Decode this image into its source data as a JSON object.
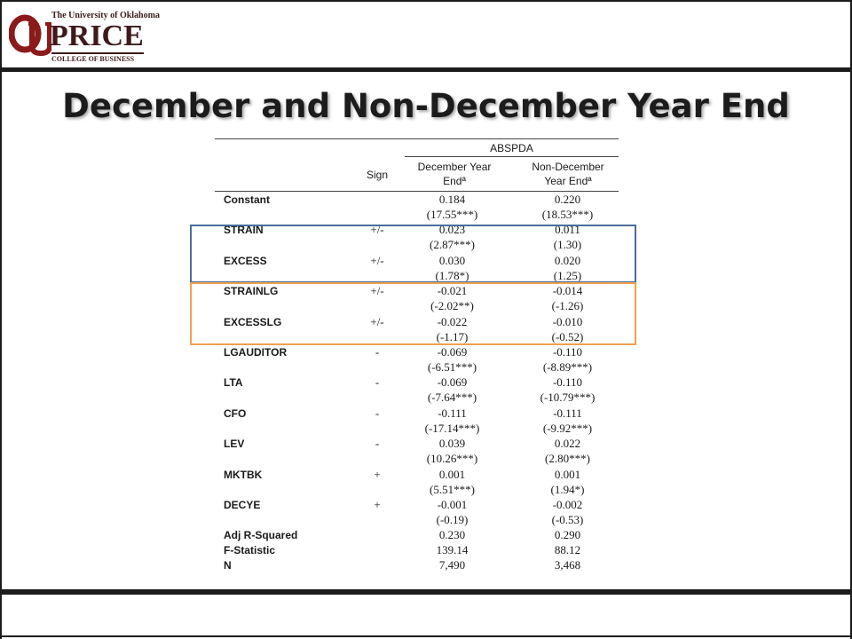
{
  "logo": {
    "university": "The University of Oklahoma",
    "price": "PRICE",
    "college": "COLLEGE OF BUSINESS",
    "brand_color": "#8b1a1a"
  },
  "slide": {
    "title": "December and Non-December Year End"
  },
  "table": {
    "group_header": "ABSPDA",
    "sign_header": "Sign",
    "col1_header_line1": "December Year",
    "col1_header_line2": "Endª",
    "col2_header_line1": "Non-December",
    "col2_header_line2": "Year Endª",
    "rows": [
      {
        "label": "Constant",
        "sign": "",
        "v1": "0.184",
        "v2": "0.220",
        "t1": "(17.55***)",
        "t2": "(18.53***)"
      },
      {
        "label": "STRAIN",
        "sign": "+/-",
        "v1": "0.023",
        "v2": "0.011",
        "t1": "(2.87***)",
        "t2": "(1.30)"
      },
      {
        "label": "EXCESS",
        "sign": "+/-",
        "v1": "0.030",
        "v2": "0.020",
        "t1": "(1.78*)",
        "t2": "(1.25)"
      },
      {
        "label": "STRAINLG",
        "sign": "+/-",
        "v1": "-0.021",
        "v2": "-0.014",
        "t1": "(-2.02**)",
        "t2": "(-1.26)"
      },
      {
        "label": "EXCESSLG",
        "sign": "+/-",
        "v1": "-0.022",
        "v2": "-0.010",
        "t1": "(-1.17)",
        "t2": "(-0.52)"
      },
      {
        "label": "LGAUDITOR",
        "sign": "-",
        "v1": "-0.069",
        "v2": "-0.110",
        "t1": "(-6.51***)",
        "t2": "(-8.89***)"
      },
      {
        "label": "LTA",
        "sign": "-",
        "v1": "-0.069",
        "v2": "-0.110",
        "t1": "(-7.64***)",
        "t2": "(-10.79***)"
      },
      {
        "label": "CFO",
        "sign": "-",
        "v1": "-0.111",
        "v2": "-0.111",
        "t1": "(-17.14***)",
        "t2": "(-9.92***)"
      },
      {
        "label": "LEV",
        "sign": "-",
        "v1": "0.039",
        "v2": "0.022",
        "t1": "(10.26***)",
        "t2": "(2.80***)"
      },
      {
        "label": "MKTBK",
        "sign": "+",
        "v1": "0.001",
        "v2": "0.001",
        "t1": "(5.51***)",
        "t2": "(1.94*)"
      },
      {
        "label": "DECYE",
        "sign": "+",
        "v1": "-0.001",
        "v2": "-0.002",
        "t1": "(-0.19)",
        "t2": "(-0.53)"
      }
    ],
    "stats": [
      {
        "label": "Adj R-Squared",
        "v1": "0.230",
        "v2": "0.290"
      },
      {
        "label": "F-Statistic",
        "v1": "139.14",
        "v2": "88.12"
      },
      {
        "label": "N",
        "v1": "7,490",
        "v2": "3,468"
      }
    ]
  },
  "highlights": {
    "blue_color": "#4a6e9a",
    "orange_color": "#f0a050"
  }
}
